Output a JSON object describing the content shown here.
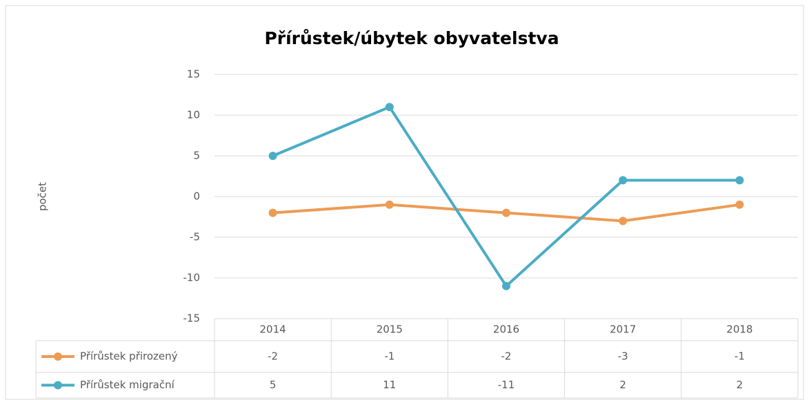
{
  "chart_data": {
    "type": "line",
    "title": "Přírůstek/úbytek obyvatelstva",
    "y_label": "počet",
    "categories": [
      "2014",
      "2015",
      "2016",
      "2017",
      "2018"
    ],
    "series": [
      {
        "name": "Přírůstek přirozený",
        "color": "#ED9B54",
        "values": [
          -2,
          -1,
          -2,
          -3,
          -1
        ]
      },
      {
        "name": "Přírůstek migrační",
        "color": "#4BACC6",
        "values": [
          5,
          11,
          -11,
          2,
          2
        ]
      }
    ],
    "ylim": [
      -15,
      15
    ],
    "yticks": [
      -15,
      -10,
      -5,
      0,
      5,
      10,
      15
    ],
    "grid": true,
    "data_table": true
  }
}
